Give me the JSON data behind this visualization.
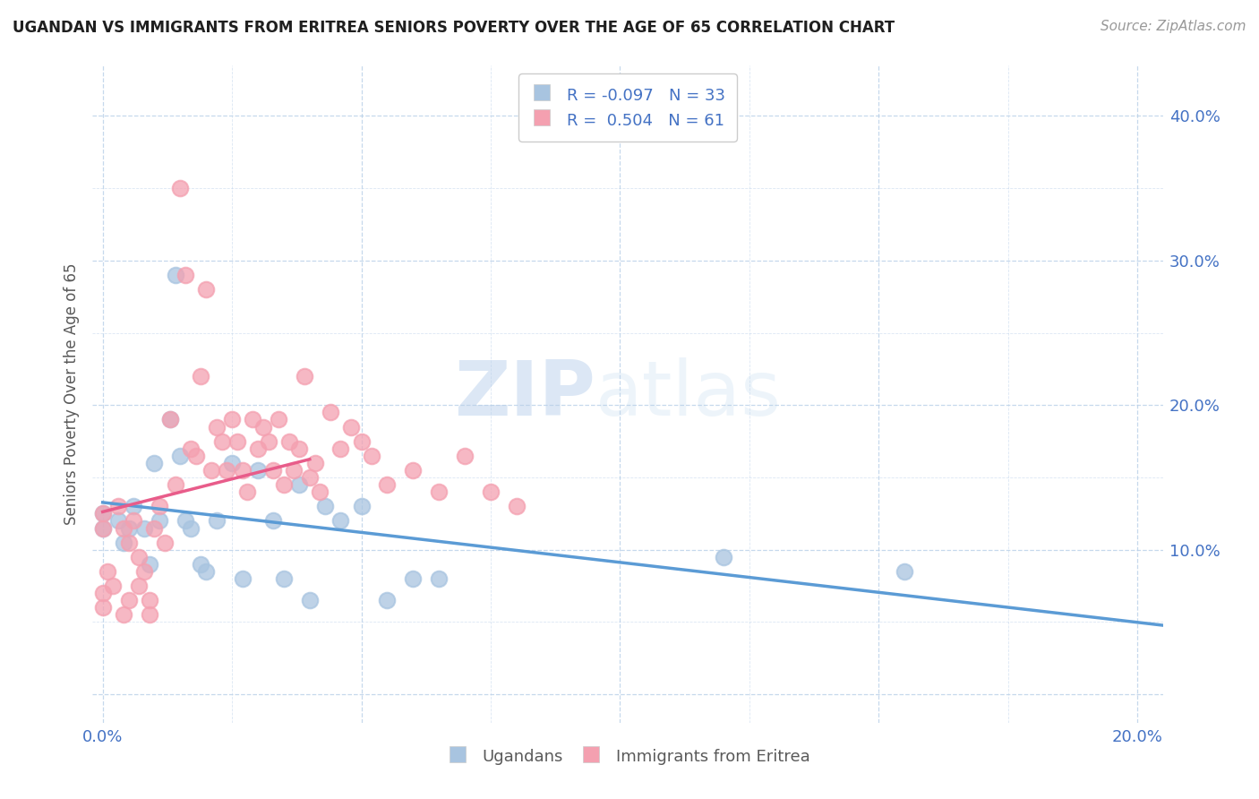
{
  "title": "UGANDAN VS IMMIGRANTS FROM ERITREA SENIORS POVERTY OVER THE AGE OF 65 CORRELATION CHART",
  "source_text": "Source: ZipAtlas.com",
  "ylabel": "Seniors Poverty Over the Age of 65",
  "xlabel_ugandan": "Ugandans",
  "xlabel_eritrea": "Immigrants from Eritrea",
  "xlim": [
    -0.002,
    0.205
  ],
  "ylim": [
    -0.02,
    0.435
  ],
  "ugandan_color": "#a8c4e0",
  "eritrea_color": "#f4a0b0",
  "ugandan_line_color": "#5b9bd5",
  "eritrea_line_color": "#e85c8a",
  "ugandan_R": -0.097,
  "ugandan_N": 33,
  "eritrea_R": 0.504,
  "eritrea_N": 61,
  "tick_color": "#4472c4",
  "label_color": "#595959",
  "watermark_zip": "ZIP",
  "watermark_atlas": "atlas",
  "ugandan_scatter_x": [
    0.0,
    0.0,
    0.003,
    0.004,
    0.005,
    0.006,
    0.008,
    0.009,
    0.01,
    0.011,
    0.013,
    0.014,
    0.015,
    0.016,
    0.017,
    0.019,
    0.02,
    0.022,
    0.025,
    0.027,
    0.03,
    0.033,
    0.035,
    0.038,
    0.04,
    0.043,
    0.046,
    0.05,
    0.055,
    0.06,
    0.065,
    0.12,
    0.155
  ],
  "ugandan_scatter_y": [
    0.125,
    0.115,
    0.12,
    0.105,
    0.115,
    0.13,
    0.115,
    0.09,
    0.16,
    0.12,
    0.19,
    0.29,
    0.165,
    0.12,
    0.115,
    0.09,
    0.085,
    0.12,
    0.16,
    0.08,
    0.155,
    0.12,
    0.08,
    0.145,
    0.065,
    0.13,
    0.12,
    0.13,
    0.065,
    0.08,
    0.08,
    0.095,
    0.085
  ],
  "eritrea_scatter_x": [
    0.0,
    0.0,
    0.0,
    0.0,
    0.001,
    0.002,
    0.003,
    0.004,
    0.004,
    0.005,
    0.005,
    0.006,
    0.007,
    0.007,
    0.008,
    0.009,
    0.009,
    0.01,
    0.011,
    0.012,
    0.013,
    0.014,
    0.015,
    0.016,
    0.017,
    0.018,
    0.019,
    0.02,
    0.021,
    0.022,
    0.023,
    0.024,
    0.025,
    0.026,
    0.027,
    0.028,
    0.029,
    0.03,
    0.031,
    0.032,
    0.033,
    0.034,
    0.035,
    0.036,
    0.037,
    0.038,
    0.039,
    0.04,
    0.041,
    0.042,
    0.044,
    0.046,
    0.048,
    0.05,
    0.052,
    0.055,
    0.06,
    0.065,
    0.07,
    0.075,
    0.08
  ],
  "eritrea_scatter_y": [
    0.125,
    0.115,
    0.07,
    0.06,
    0.085,
    0.075,
    0.13,
    0.115,
    0.055,
    0.105,
    0.065,
    0.12,
    0.095,
    0.075,
    0.085,
    0.065,
    0.055,
    0.115,
    0.13,
    0.105,
    0.19,
    0.145,
    0.35,
    0.29,
    0.17,
    0.165,
    0.22,
    0.28,
    0.155,
    0.185,
    0.175,
    0.155,
    0.19,
    0.175,
    0.155,
    0.14,
    0.19,
    0.17,
    0.185,
    0.175,
    0.155,
    0.19,
    0.145,
    0.175,
    0.155,
    0.17,
    0.22,
    0.15,
    0.16,
    0.14,
    0.195,
    0.17,
    0.185,
    0.175,
    0.165,
    0.145,
    0.155,
    0.14,
    0.165,
    0.14,
    0.13
  ]
}
